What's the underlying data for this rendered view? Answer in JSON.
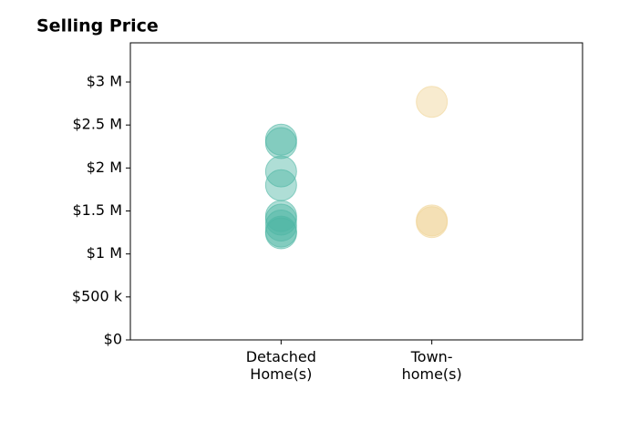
{
  "chart_data": {
    "type": "strip",
    "title": "Selling Price",
    "categories": [
      "Detached\nHome(s)",
      "Town-\nhome(s)"
    ],
    "values": [
      [
        2330000,
        2290000,
        1960000,
        1800000,
        1440000,
        1400000,
        1330000,
        1260000,
        1240000
      ],
      [
        2770000,
        1370000,
        1390000
      ]
    ],
    "colors": [
      "#4db6a4",
      "#f0d394"
    ],
    "ylim": [
      0,
      3456000
    ],
    "yticks": [
      {
        "value": 0,
        "label": "$0"
      },
      {
        "value": 500000,
        "label": "$500 k"
      },
      {
        "value": 1000000,
        "label": "$1 M"
      },
      {
        "value": 1500000,
        "label": "$1.5 M"
      },
      {
        "value": 2000000,
        "label": "$2 M"
      },
      {
        "value": 2500000,
        "label": "$2.5 M"
      },
      {
        "value": 3000000,
        "label": "$3 M"
      }
    ]
  }
}
